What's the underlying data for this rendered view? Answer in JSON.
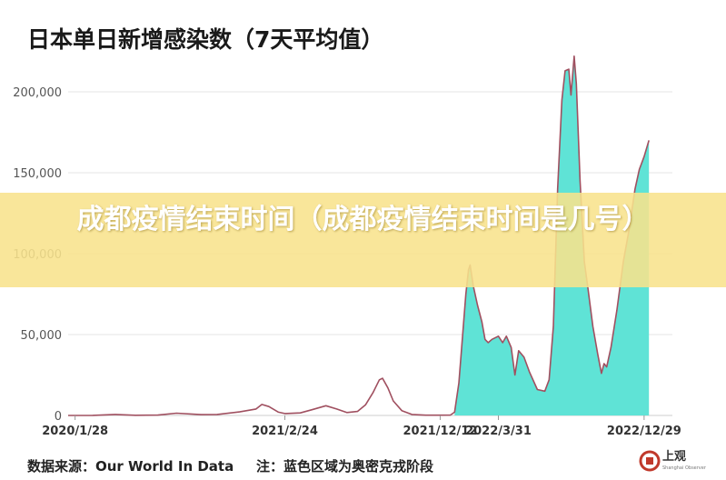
{
  "banner": {
    "text": "成都疫情结束时间（成都疫情结束时间是几号）"
  },
  "footer": {
    "source": "数据来源：Our World In Data",
    "note": "注：蓝色区域为奥密克戎阶段"
  },
  "logo": {
    "name": "上观",
    "subtitle": "Shanghai Observer"
  },
  "colors": {
    "line": "#a05060",
    "omicron_fill": "#5fe3d6",
    "grid": "#e6e6e6",
    "text": "#333333",
    "banner": "#f8e28c"
  },
  "chart_data": {
    "type": "area",
    "title": "日本单日新增感染数（7天平均值）",
    "xlabel": "",
    "ylabel": "",
    "ylim": [
      0,
      230000
    ],
    "yticks": [
      0,
      50000,
      100000,
      150000,
      200000
    ],
    "ytick_labels": [
      "0",
      "50,000",
      "100,000",
      "150,000",
      "200,000"
    ],
    "xlim": [
      "2020-01-15",
      "2023-02-20"
    ],
    "xtick_labels": [
      {
        "date": "2020-01-28",
        "label": "2020/1/28"
      },
      {
        "date": "2021-02-24",
        "label": "2021/2/24"
      },
      {
        "date": "2021-12-12",
        "label": "2021/12/12"
      },
      {
        "date": "2022-03-31",
        "label": "2022/3/31"
      },
      {
        "date": "2022-12-29",
        "label": "2022/12/29"
      }
    ],
    "omicron_start": "2022-01-01",
    "series": [
      {
        "points": [
          [
            "2020-01-15",
            0
          ],
          [
            "2020-03-01",
            50
          ],
          [
            "2020-04-12",
            600
          ],
          [
            "2020-05-20",
            100
          ],
          [
            "2020-07-01",
            200
          ],
          [
            "2020-08-05",
            1400
          ],
          [
            "2020-09-20",
            500
          ],
          [
            "2020-10-20",
            600
          ],
          [
            "2020-12-01",
            2200
          ],
          [
            "2021-01-01",
            4000
          ],
          [
            "2021-01-12",
            6800
          ],
          [
            "2021-01-25",
            5500
          ],
          [
            "2021-02-12",
            2000
          ],
          [
            "2021-02-24",
            1200
          ],
          [
            "2021-03-25",
            1600
          ],
          [
            "2021-04-15",
            3500
          ],
          [
            "2021-05-12",
            6000
          ],
          [
            "2021-06-01",
            4000
          ],
          [
            "2021-06-20",
            1800
          ],
          [
            "2021-07-10",
            2500
          ],
          [
            "2021-07-25",
            6500
          ],
          [
            "2021-08-08",
            14000
          ],
          [
            "2021-08-20",
            22000
          ],
          [
            "2021-08-26",
            23000
          ],
          [
            "2021-09-05",
            17000
          ],
          [
            "2021-09-15",
            9000
          ],
          [
            "2021-10-01",
            3000
          ],
          [
            "2021-10-20",
            600
          ],
          [
            "2021-11-15",
            150
          ],
          [
            "2021-12-12",
            150
          ],
          [
            "2021-12-31",
            250
          ],
          [
            "2022-01-08",
            2000
          ],
          [
            "2022-01-16",
            20000
          ],
          [
            "2022-01-22",
            45000
          ],
          [
            "2022-01-29",
            75000
          ],
          [
            "2022-02-03",
            90000
          ],
          [
            "2022-02-06",
            93000
          ],
          [
            "2022-02-12",
            80000
          ],
          [
            "2022-02-20",
            68000
          ],
          [
            "2022-02-28",
            58000
          ],
          [
            "2022-03-06",
            47000
          ],
          [
            "2022-03-12",
            45000
          ],
          [
            "2022-03-19",
            47000
          ],
          [
            "2022-03-31",
            49000
          ],
          [
            "2022-04-08",
            45000
          ],
          [
            "2022-04-15",
            49000
          ],
          [
            "2022-04-24",
            42000
          ],
          [
            "2022-05-01",
            25000
          ],
          [
            "2022-05-08",
            40000
          ],
          [
            "2022-05-18",
            36000
          ],
          [
            "2022-05-28",
            27000
          ],
          [
            "2022-06-12",
            16000
          ],
          [
            "2022-06-26",
            15000
          ],
          [
            "2022-07-04",
            22000
          ],
          [
            "2022-07-12",
            55000
          ],
          [
            "2022-07-20",
            140000
          ],
          [
            "2022-07-28",
            195000
          ],
          [
            "2022-08-03",
            213000
          ],
          [
            "2022-08-10",
            214000
          ],
          [
            "2022-08-14",
            198000
          ],
          [
            "2022-08-20",
            222000
          ],
          [
            "2022-08-24",
            205000
          ],
          [
            "2022-08-31",
            145000
          ],
          [
            "2022-09-08",
            95000
          ],
          [
            "2022-09-15",
            78000
          ],
          [
            "2022-09-24",
            55000
          ],
          [
            "2022-10-03",
            38000
          ],
          [
            "2022-10-10",
            26000
          ],
          [
            "2022-10-15",
            32000
          ],
          [
            "2022-10-20",
            30000
          ],
          [
            "2022-10-28",
            42000
          ],
          [
            "2022-11-08",
            65000
          ],
          [
            "2022-11-20",
            95000
          ],
          [
            "2022-12-01",
            115000
          ],
          [
            "2022-12-12",
            140000
          ],
          [
            "2022-12-20",
            152000
          ],
          [
            "2022-12-29",
            160000
          ],
          [
            "2023-01-07",
            170000
          ]
        ]
      }
    ]
  }
}
